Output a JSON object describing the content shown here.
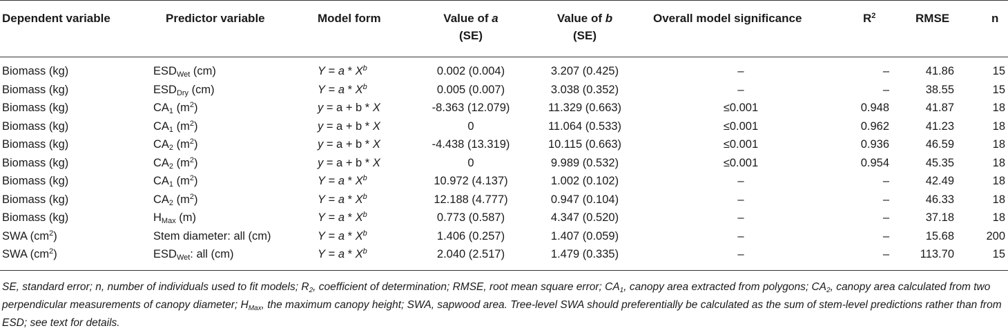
{
  "headers": {
    "dependent": "Dependent variable",
    "predictor": "Predictor variable",
    "model_form": "Model form",
    "value_a_1": "Value of ",
    "value_a_var": "a",
    "value_a_se": "(SE)",
    "value_b_1": "Value of ",
    "value_b_var": "b",
    "value_b_se": "(SE)",
    "significance": "Overall model significance",
    "r2_base": "R",
    "r2_sup": "2",
    "rmse": "RMSE",
    "n": "n"
  },
  "rows": [
    {
      "dep": "Biomass (kg)",
      "dep_sup": "",
      "pred": "ESD",
      "pred_sub": "Wet",
      "pred_rest": " (cm)",
      "pred_sup": "",
      "pred_tail": "",
      "model": "power",
      "a": "0.002 (0.004)",
      "b": "3.207 (0.425)",
      "sig": "–",
      "r2": "–",
      "rmse": "41.86",
      "n": "15"
    },
    {
      "dep": "Biomass (kg)",
      "dep_sup": "",
      "pred": "ESD",
      "pred_sub": "Dry",
      "pred_rest": " (cm)",
      "pred_sup": "",
      "pred_tail": "",
      "model": "power",
      "a": "0.005 (0.007)",
      "b": "3.038 (0.352)",
      "sig": "–",
      "r2": "–",
      "rmse": "38.55",
      "n": "15"
    },
    {
      "dep": "Biomass (kg)",
      "dep_sup": "",
      "pred": "CA",
      "pred_sub": "1",
      "pred_rest": " (m",
      "pred_sup": "2",
      "pred_tail": ")",
      "model": "linear",
      "a": "-8.363 (12.079)",
      "b": "11.329 (0.663)",
      "sig": "≤0.001",
      "r2": "0.948",
      "rmse": "41.87",
      "n": "18"
    },
    {
      "dep": "Biomass (kg)",
      "dep_sup": "",
      "pred": "CA",
      "pred_sub": "1",
      "pred_rest": " (m",
      "pred_sup": "2",
      "pred_tail": ")",
      "model": "linear",
      "a": "0",
      "b": "11.064 (0.533)",
      "sig": "≤0.001",
      "r2": "0.962",
      "rmse": "41.23",
      "n": "18"
    },
    {
      "dep": "Biomass (kg)",
      "dep_sup": "",
      "pred": "CA",
      "pred_sub": "2",
      "pred_rest": " (m",
      "pred_sup": "2",
      "pred_tail": ")",
      "model": "linear",
      "a": "-4.438 (13.319)",
      "b": "10.115 (0.663)",
      "sig": "≤0.001",
      "r2": "0.936",
      "rmse": "46.59",
      "n": "18"
    },
    {
      "dep": "Biomass (kg)",
      "dep_sup": "",
      "pred": "CA",
      "pred_sub": "2",
      "pred_rest": " (m",
      "pred_sup": "2",
      "pred_tail": ")",
      "model": "linear",
      "a": "0",
      "b": "9.989 (0.532)",
      "sig": "≤0.001",
      "r2": "0.954",
      "rmse": "45.35",
      "n": "18"
    },
    {
      "dep": "Biomass (kg)",
      "dep_sup": "",
      "pred": "CA",
      "pred_sub": "1",
      "pred_rest": " (m",
      "pred_sup": "2",
      "pred_tail": ")",
      "model": "power",
      "a": "10.972 (4.137)",
      "b": "1.002 (0.102)",
      "sig": "–",
      "r2": "–",
      "rmse": "42.49",
      "n": "18"
    },
    {
      "dep": "Biomass (kg)",
      "dep_sup": "",
      "pred": "CA",
      "pred_sub": "2",
      "pred_rest": " (m",
      "pred_sup": "2",
      "pred_tail": ")",
      "model": "power",
      "a": "12.188 (4.777)",
      "b": "0.947 (0.104)",
      "sig": "–",
      "r2": "–",
      "rmse": "46.33",
      "n": "18"
    },
    {
      "dep": "Biomass (kg)",
      "dep_sup": "",
      "pred": "H",
      "pred_sub": "Max",
      "pred_rest": " (m)",
      "pred_sup": "",
      "pred_tail": "",
      "model": "power",
      "a": "0.773 (0.587)",
      "b": "4.347 (0.520)",
      "sig": "–",
      "r2": "–",
      "rmse": "37.18",
      "n": "18"
    },
    {
      "dep": "SWA (cm",
      "dep_sup": "2",
      "pred": "Stem diameter: all (cm)",
      "pred_sub": "",
      "pred_rest": "",
      "pred_sup": "",
      "pred_tail": "",
      "model": "power",
      "a": "1.406 (0.257)",
      "b": "1.407 (0.059)",
      "sig": "–",
      "r2": "–",
      "rmse": "15.68",
      "n": "200"
    },
    {
      "dep": "SWA (cm",
      "dep_sup": "2",
      "pred": "ESD",
      "pred_sub": "Wet",
      "pred_rest": ": all (cm)",
      "pred_sup": "",
      "pred_tail": "",
      "model": "power",
      "a": "2.040 (2.517)",
      "b": "1.479 (0.335)",
      "sig": "–",
      "r2": "–",
      "rmse": "113.70",
      "n": "15"
    }
  ],
  "model_forms": {
    "power": {
      "y": "Y",
      "eq": " = ",
      "a": "a",
      "op": " * ",
      "x": "X",
      "exp": "b"
    },
    "linear": {
      "y": "y",
      "eq": " = a + b * ",
      "x": "X"
    }
  },
  "footnote": {
    "p1": "SE, standard error; n, number of individuals used to fit models; R",
    "p1_sub": "2",
    "p2": ", coefficient of determination; RMSE, root mean square error; CA",
    "p2_sub": "1",
    "p3": ", canopy area extracted from polygons; CA",
    "p3_sub": "2",
    "p4": ", canopy area calculated from two perpendicular measurements of canopy diameter; H",
    "p4_sub": "Max",
    "p5": ", the maximum canopy height; SWA, sapwood area. Tree-level SWA should preferentially be calculated as the sum of stem-level predictions rather than from ESD; see text for details."
  }
}
